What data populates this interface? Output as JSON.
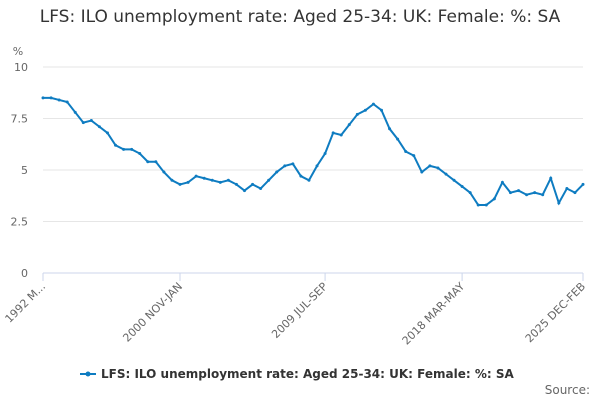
{
  "chart_data": {
    "type": "line",
    "title": "LFS: ILO unemployment rate: Aged 25-34: UK: Female: %: SA",
    "y_label": "%",
    "source": "Source:",
    "categories": [
      "1992 M...",
      null,
      null,
      null,
      null,
      null,
      null,
      null,
      null,
      null,
      null,
      null,
      null,
      null,
      null,
      null,
      null,
      "2000 NOV-JAN",
      null,
      null,
      null,
      null,
      null,
      null,
      null,
      null,
      null,
      null,
      null,
      null,
      null,
      null,
      null,
      null,
      null,
      "2009 JUL-SEP",
      null,
      null,
      null,
      null,
      null,
      null,
      null,
      null,
      null,
      null,
      null,
      null,
      null,
      null,
      null,
      null,
      "2018 MAR-MAY",
      null,
      null,
      null,
      null,
      null,
      null,
      null,
      null,
      null,
      null,
      null,
      null,
      null,
      null,
      "2025 DEC-FEB"
    ],
    "series": [
      {
        "name": "LFS: ILO unemployment rate: Aged 25-34: UK: Female: %: SA",
        "color": "#0e7cc1",
        "values": [
          8.5,
          8.5,
          8.4,
          8.3,
          7.8,
          7.3,
          7.4,
          7.1,
          6.8,
          6.2,
          6.0,
          6.0,
          5.8,
          5.4,
          5.4,
          4.9,
          4.5,
          4.3,
          4.4,
          4.7,
          4.6,
          4.5,
          4.4,
          4.5,
          4.3,
          4.0,
          4.3,
          4.1,
          4.5,
          4.9,
          5.2,
          5.3,
          4.7,
          4.5,
          5.2,
          5.8,
          6.8,
          6.7,
          7.2,
          7.7,
          7.9,
          8.2,
          7.9,
          7.0,
          6.5,
          5.9,
          5.7,
          4.9,
          5.2,
          5.1,
          4.8,
          4.5,
          4.2,
          3.9,
          3.3,
          3.3,
          3.6,
          4.4,
          3.9,
          4.0,
          3.8,
          3.9,
          3.8,
          4.6,
          3.4,
          4.1,
          3.9,
          4.3
        ]
      }
    ],
    "ylim": [
      0,
      10
    ],
    "yticks": [
      0,
      2.5,
      5,
      7.5,
      10
    ],
    "grid": true
  }
}
